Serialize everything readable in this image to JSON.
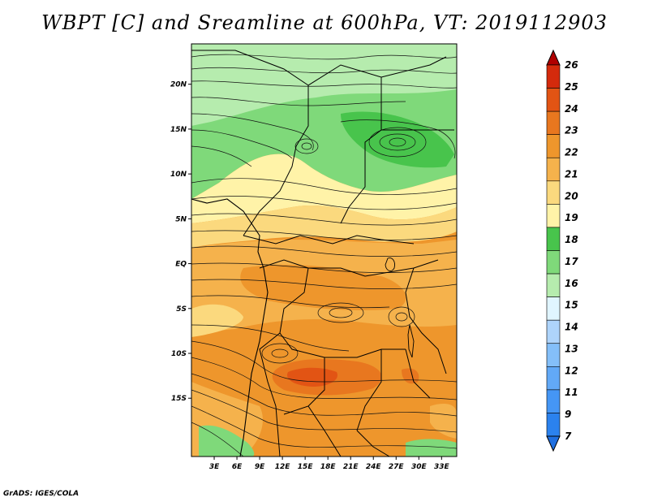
{
  "title": "WBPT [C] and Sreamline at 600hPa, VT: 2019112903",
  "credit": "GrADS: IGES/COLA",
  "map": {
    "variable": "WBPT [C]",
    "overlay": "Sreamline",
    "level": "600hPa",
    "valid_time": "2019112903",
    "lon_range": [
      0,
      35
    ],
    "lat_range": [
      -21.5,
      24.5
    ],
    "lon_ticks": [
      {
        "value": 3,
        "label": "3E"
      },
      {
        "value": 6,
        "label": "6E"
      },
      {
        "value": 9,
        "label": "9E"
      },
      {
        "value": 12,
        "label": "12E"
      },
      {
        "value": 15,
        "label": "15E"
      },
      {
        "value": 18,
        "label": "18E"
      },
      {
        "value": 21,
        "label": "21E"
      },
      {
        "value": 24,
        "label": "24E"
      },
      {
        "value": 27,
        "label": "27E"
      },
      {
        "value": 30,
        "label": "30E"
      },
      {
        "value": 33,
        "label": "33E"
      }
    ],
    "lat_ticks": [
      {
        "value": 20,
        "label": "20N"
      },
      {
        "value": 15,
        "label": "15N"
      },
      {
        "value": 10,
        "label": "10N"
      },
      {
        "value": 5,
        "label": "5N"
      },
      {
        "value": 0,
        "label": "EQ"
      },
      {
        "value": -5,
        "label": "5S"
      },
      {
        "value": -10,
        "label": "10S"
      },
      {
        "value": -15,
        "label": "15S"
      }
    ]
  },
  "colorbar": {
    "levels": [
      "7",
      "9",
      "11",
      "12",
      "13",
      "14",
      "15",
      "16",
      "17",
      "18",
      "19",
      "20",
      "21",
      "22",
      "23",
      "24",
      "25",
      "26"
    ],
    "colors": [
      "#1f6fe0",
      "#2b82ee",
      "#4596f5",
      "#62a9f7",
      "#84bff9",
      "#aed4fb",
      "#e0f5ff",
      "#b6ecae",
      "#7fd97a",
      "#48c44c",
      "#fff3a8",
      "#fbd97e",
      "#f5b24c",
      "#ee962c",
      "#e8771f",
      "#e25414",
      "#d42a0c",
      "#b00000"
    ]
  }
}
